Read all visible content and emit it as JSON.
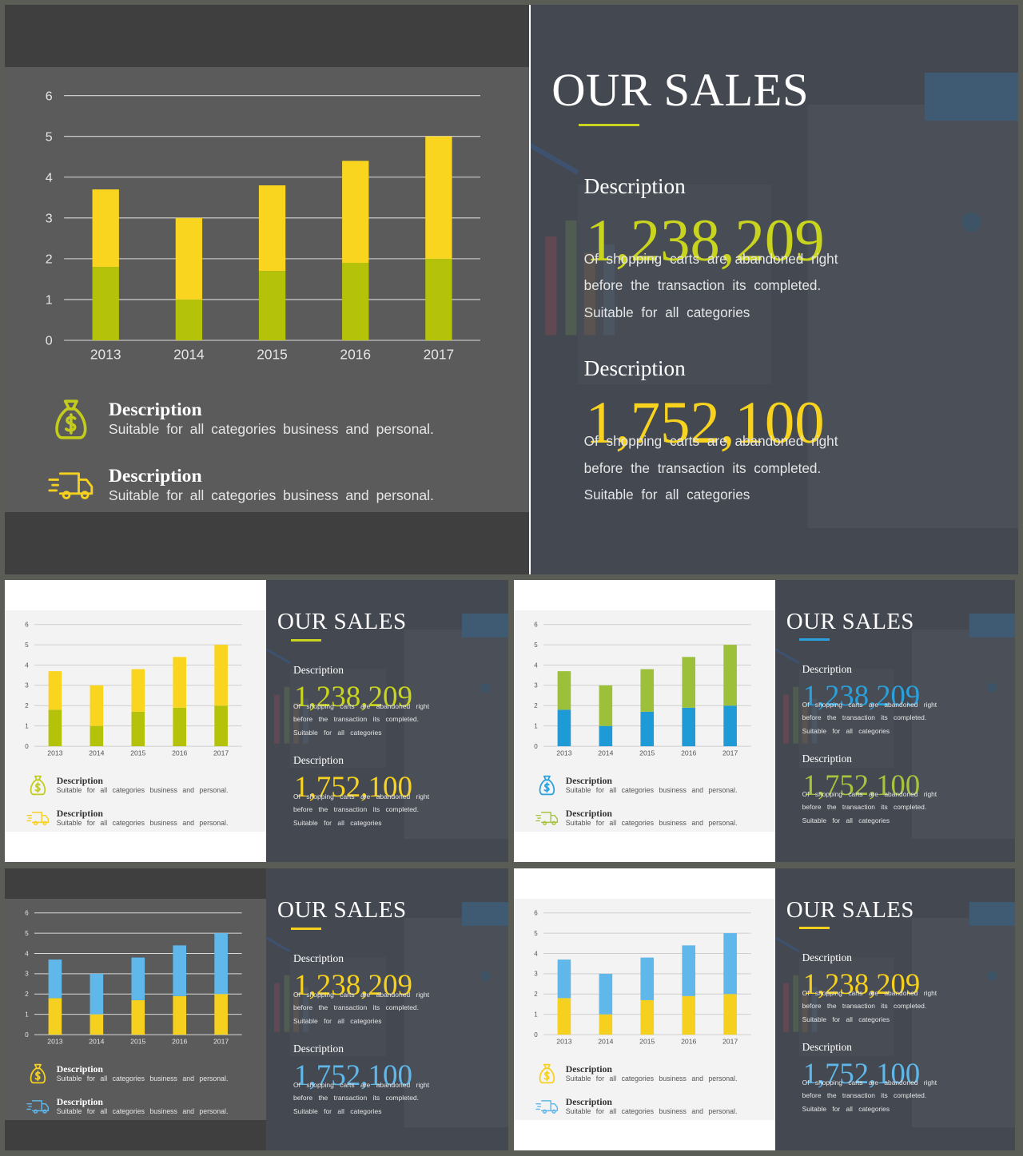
{
  "title": "OUR SALES",
  "stat1": {
    "label": "Description",
    "value": "1,238,209",
    "line1": "Of shopping carts are abandoned right",
    "line2": "before the transaction its completed.",
    "line3": "Suitable for all categories"
  },
  "stat2": {
    "label": "Description",
    "value": "1,752,100",
    "line1": "Of shopping carts are abandoned right",
    "line2": "before the transaction its completed.",
    "line3": "Suitable for all categories"
  },
  "legend": [
    {
      "icon": "money-bag-icon",
      "title": "Description",
      "text": "Suitable for all categories business and personal."
    },
    {
      "icon": "delivery-truck-icon",
      "title": "Description",
      "text": "Suitable for all categories business and personal."
    }
  ],
  "variants": [
    {
      "id": "main",
      "panel": "dark",
      "bottom_color": "#b5c20a",
      "top_color": "#f9d520",
      "num1_color": "#c8d41e",
      "num2_color": "#f7d31f",
      "icon1_color": "#c3cc1c",
      "icon2_color": "#f6d01e",
      "underline_color": "#c8d41e"
    },
    {
      "id": "v1",
      "panel": "light",
      "bottom_color": "#b5c20a",
      "top_color": "#f9d520",
      "num1_color": "#c8d41e",
      "num2_color": "#f7d31f",
      "icon1_color": "#c3cc1c",
      "icon2_color": "#f6d01e",
      "underline_color": "#c8d41e"
    },
    {
      "id": "v2",
      "panel": "light",
      "bottom_color": "#1e9ad6",
      "top_color": "#9dc03a",
      "num1_color": "#2aa0dc",
      "num2_color": "#a8c43e",
      "icon1_color": "#2aa0dc",
      "icon2_color": "#a8c43e",
      "underline_color": "#2aa0dc"
    },
    {
      "id": "v3",
      "panel": "dark",
      "bottom_color": "#f6d01e",
      "top_color": "#5fb7ea",
      "num1_color": "#f6d01e",
      "num2_color": "#5fb7ea",
      "icon1_color": "#f6d01e",
      "icon2_color": "#5fb7ea",
      "underline_color": "#f6d01e"
    },
    {
      "id": "v4",
      "panel": "light",
      "bottom_color": "#f6d01e",
      "top_color": "#5fb7ea",
      "num1_color": "#f6d01e",
      "num2_color": "#5fb7ea",
      "icon1_color": "#f6d01e",
      "icon2_color": "#5fb7ea",
      "underline_color": "#f6d01e"
    }
  ],
  "chart_data": {
    "type": "bar",
    "stacked": true,
    "categories": [
      "2013",
      "2014",
      "2015",
      "2016",
      "2017"
    ],
    "series": [
      {
        "values": [
          1.8,
          1.0,
          1.7,
          1.9,
          2.0
        ]
      },
      {
        "values": [
          1.9,
          2.0,
          2.1,
          2.5,
          3.0
        ]
      }
    ],
    "ylim": [
      0,
      6
    ],
    "yticks": [
      "0",
      "1",
      "2",
      "3",
      "4",
      "5",
      "6"
    ],
    "grid": true
  }
}
